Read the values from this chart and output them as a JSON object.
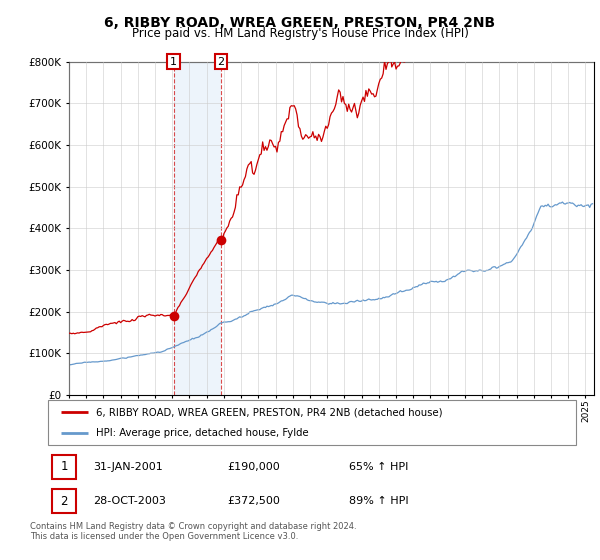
{
  "title": "6, RIBBY ROAD, WREA GREEN, PRESTON, PR4 2NB",
  "subtitle": "Price paid vs. HM Land Registry's House Price Index (HPI)",
  "legend_line1": "6, RIBBY ROAD, WREA GREEN, PRESTON, PR4 2NB (detached house)",
  "legend_line2": "HPI: Average price, detached house, Fylde",
  "transactions": [
    {
      "label": "1",
      "date": "31-JAN-2001",
      "price": 190000,
      "price_str": "£190,000",
      "pct": "65%",
      "dir": "↑",
      "year": 2001.08
    },
    {
      "label": "2",
      "date": "28-OCT-2003",
      "price": 372500,
      "price_str": "£372,500",
      "pct": "89%",
      "dir": "↑",
      "year": 2003.83
    }
  ],
  "footer": "Contains HM Land Registry data © Crown copyright and database right 2024.\nThis data is licensed under the Open Government Licence v3.0.",
  "red_color": "#cc0000",
  "blue_color": "#6699cc",
  "shade_color": "#cce0f5",
  "ylim": [
    0,
    800000
  ],
  "xlim_start": 1995.0,
  "xlim_end": 2025.5
}
